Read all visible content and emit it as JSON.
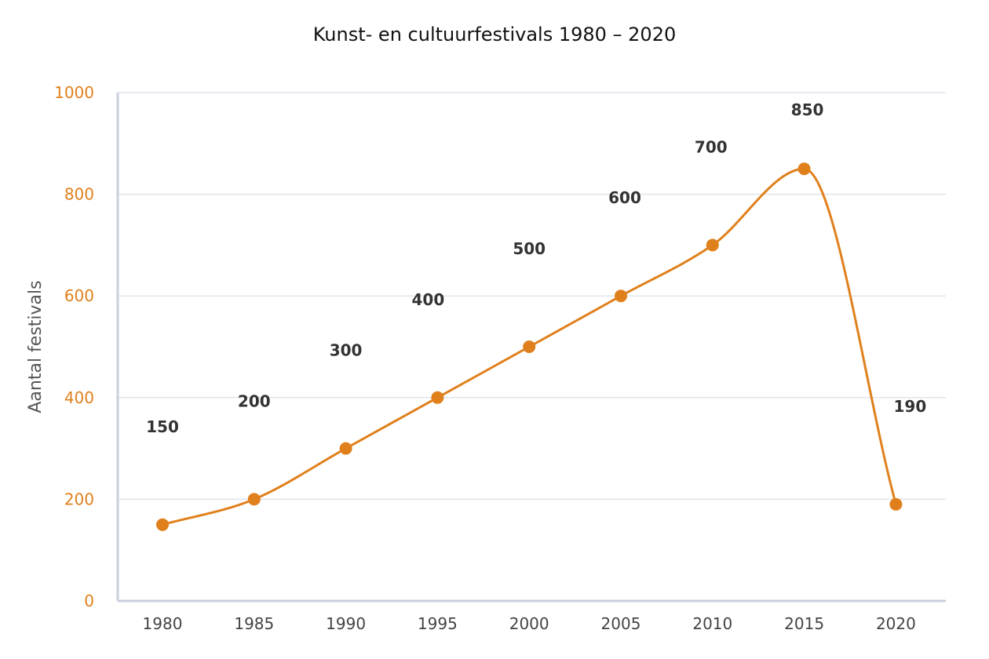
{
  "chart_data": {
    "type": "line",
    "title": "Kunst- en cultuurfestivals 1980 – 2020",
    "xlabel": "",
    "ylabel": "Aantal festivals",
    "categories": [
      "1980",
      "1985",
      "1990",
      "1995",
      "2000",
      "2005",
      "2010",
      "2015",
      "2020"
    ],
    "series": [
      {
        "name": "Aantal festivals",
        "values": [
          150,
          200,
          300,
          400,
          500,
          600,
          700,
          850,
          190
        ]
      }
    ],
    "data_labels": [
      "150",
      "200",
      "300",
      "400",
      "500",
      "600",
      "700",
      "850",
      "190"
    ],
    "yticks": [
      0,
      200,
      400,
      600,
      800,
      1000
    ],
    "ylim": [
      0,
      1000
    ],
    "grid": true,
    "line_color": "#e0801c",
    "tick_color": "#e0801c"
  }
}
